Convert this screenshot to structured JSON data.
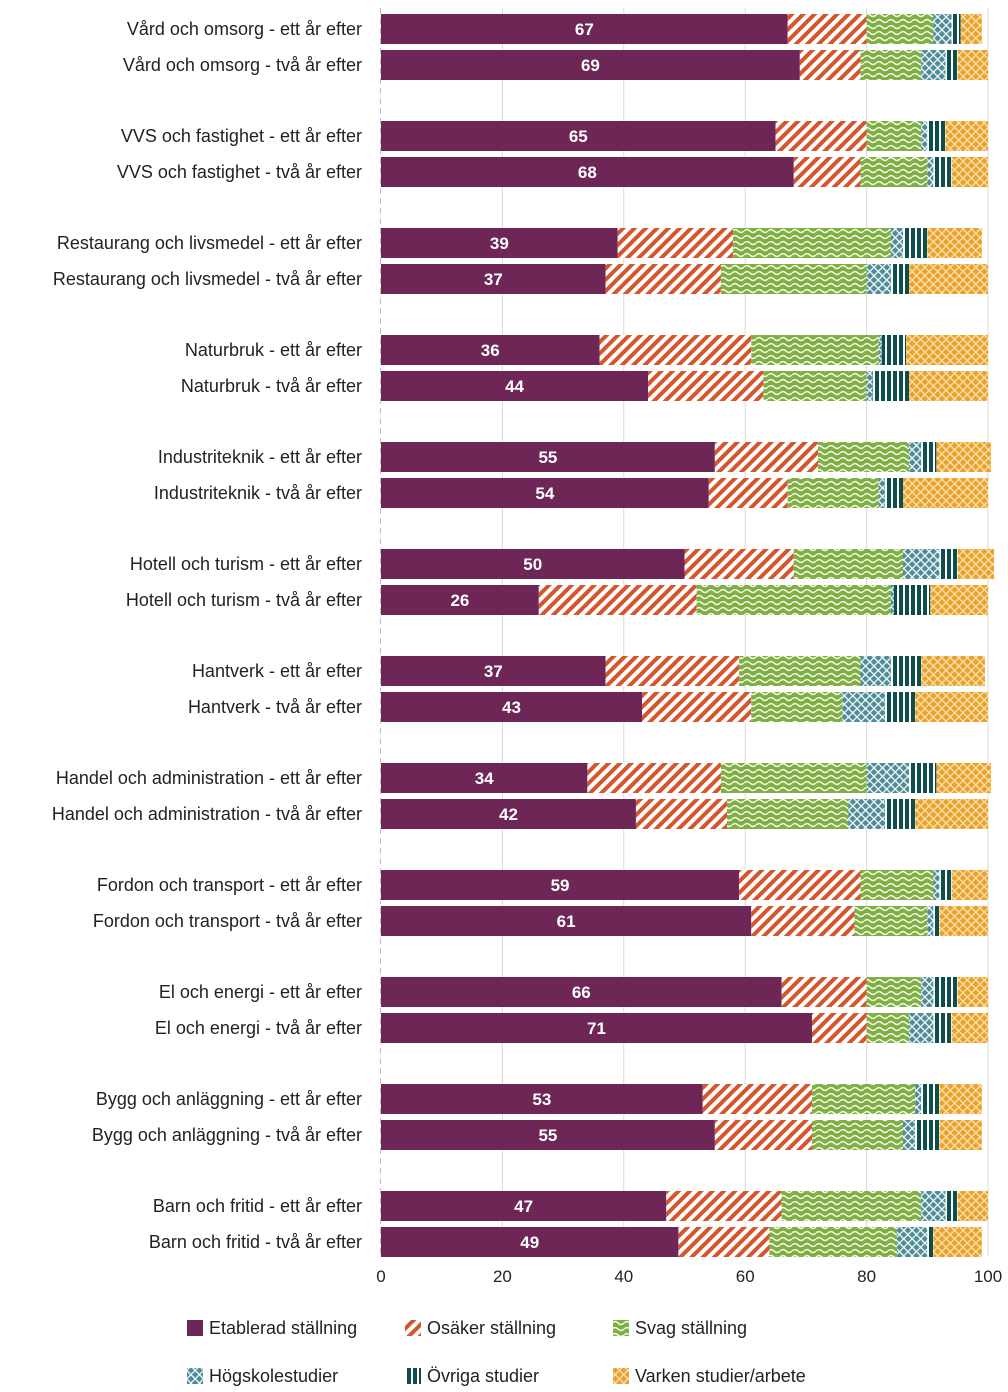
{
  "chart_data": {
    "type": "bar",
    "orientation": "horizontal",
    "stacked": true,
    "title": "",
    "xlabel": "",
    "ylabel": "",
    "xlim": [
      0,
      100
    ],
    "xticks": [
      0,
      20,
      40,
      60,
      80,
      100
    ],
    "grid": "vertical",
    "legend_position": "bottom",
    "categories": [
      "Vård och omsorg - ett år efter",
      "Vård och omsorg - två år efter",
      "VVS och fastighet - ett år efter",
      "VVS och fastighet - två år efter",
      "Restaurang och livsmedel - ett år efter",
      "Restaurang och livsmedel - två år efter",
      "Naturbruk - ett år efter",
      "Naturbruk - två år efter",
      "Industriteknik - ett år efter",
      "Industriteknik - två år efter",
      "Hotell och turism - ett år efter",
      "Hotell och turism - två år efter",
      "Hantverk - ett år efter",
      "Hantverk - två år efter",
      "Handel och administration - ett år efter",
      "Handel och administration - två år efter",
      "Fordon och transport - ett år efter",
      "Fordon och transport - två år efter",
      "El och energi - ett år efter",
      "El och energi - två år efter",
      "Bygg och anläggning - ett år efter",
      "Bygg och anläggning - två år efter",
      "Barn och fritid - ett år efter",
      "Barn och fritid - två år efter"
    ],
    "series": [
      {
        "name": "Etablerad ställning",
        "color": "#6e2656",
        "pattern": "solid",
        "values": [
          67,
          69,
          65,
          68,
          39,
          37,
          36,
          44,
          55,
          54,
          50,
          26,
          37,
          43,
          34,
          42,
          59,
          61,
          66,
          71,
          53,
          55,
          47,
          49
        ]
      },
      {
        "name": "Osäker ställning",
        "color": "#d4562e",
        "pattern": "diagonal",
        "values": [
          13,
          10,
          15,
          11,
          19,
          19,
          25,
          19,
          17,
          13,
          18,
          26,
          22,
          18,
          22,
          15,
          20,
          17,
          14,
          9,
          18,
          16,
          19,
          15
        ]
      },
      {
        "name": "Svag ställning",
        "color": "#7fb041",
        "pattern": "wave",
        "values": [
          11,
          10,
          9,
          11,
          26,
          24,
          21,
          17,
          15,
          15,
          18,
          32,
          20,
          15,
          24,
          20,
          12,
          12,
          9,
          7,
          17,
          15,
          23,
          21
        ]
      },
      {
        "name": "Högskolestudier",
        "color": "#4e8c98",
        "pattern": "crosshatch",
        "values": [
          3,
          4,
          1,
          1,
          2,
          4,
          0.5,
          1,
          2,
          1,
          6,
          0.5,
          5,
          7,
          7,
          6,
          1,
          1,
          2,
          4,
          1,
          2,
          4,
          5
        ]
      },
      {
        "name": "Övriga studier",
        "color": "#0e4f4e",
        "pattern": "vertical",
        "values": [
          1.5,
          2,
          3,
          3,
          4,
          3,
          4,
          6,
          2.5,
          3,
          3,
          6,
          5,
          5,
          4.5,
          5,
          2,
          1,
          4,
          3,
          3,
          4,
          2,
          1
        ]
      },
      {
        "name": "Varken studier/arbete",
        "color": "#eba22c",
        "pattern": "dots",
        "values": [
          3.5,
          5,
          7,
          6,
          9,
          13,
          13.5,
          13,
          9,
          14,
          6,
          9.5,
          10.5,
          12,
          9,
          12,
          6,
          8,
          5,
          6,
          7,
          7,
          5,
          8
        ]
      }
    ]
  }
}
